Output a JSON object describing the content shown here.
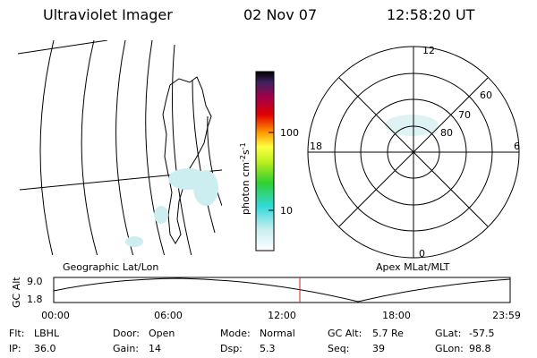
{
  "header": {
    "title": "Ultraviolet Imager",
    "date": "02 Nov 07",
    "time": "12:58:20 UT"
  },
  "map": {
    "label": "Geographic Lat/Lon"
  },
  "colorbar": {
    "label": {
      "unit1": "photon cm",
      "exp1": "-2",
      "unit2": "s",
      "exp2": "-1"
    },
    "ticks": [
      "100",
      "10"
    ]
  },
  "polar": {
    "label": "Apex MLat/MLT",
    "mlt": [
      "12",
      "18",
      "6",
      "0"
    ],
    "mlat": [
      "60",
      "70",
      "80"
    ]
  },
  "altitude": {
    "axis_label": "GC Alt",
    "yticks": [
      "9.0",
      "1.8"
    ],
    "xticks": [
      "00:00",
      "06:00",
      "12:00",
      "18:00",
      "23:59"
    ]
  },
  "info": [
    [
      [
        "Flt:",
        "LBHL"
      ],
      [
        "Door:",
        "Open"
      ],
      [
        "Mode:",
        "Normal"
      ],
      [
        "GC Alt:",
        "5.7 Re"
      ],
      [
        "GLat:",
        "-57.5"
      ]
    ],
    [
      [
        "IP:",
        "36.0"
      ],
      [
        "Gain:",
        "14"
      ],
      [
        "Dsp:",
        "5.3"
      ],
      [
        "Seq:",
        "39"
      ],
      [
        "GLon:",
        "98.8"
      ]
    ]
  ]
}
